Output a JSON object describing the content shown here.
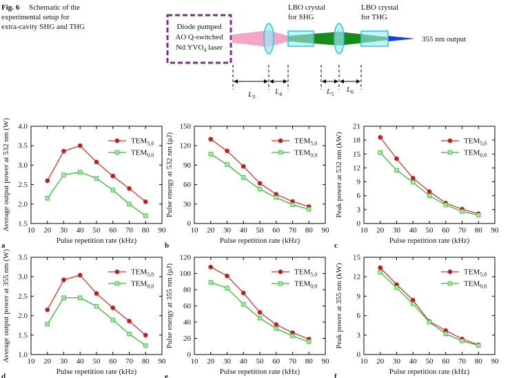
{
  "caption": {
    "label": "Fig. 6",
    "lines": [
      "Schematic of the",
      "experimental setup for",
      "extra-cavity SHG and THG"
    ]
  },
  "schematic": {
    "laser_label": [
      {
        "text": "Diode pumped"
      },
      {
        "text": "AO Q-switched"
      },
      {
        "text": "Nd:YVO",
        "sub": "4",
        "tail": " laser"
      }
    ],
    "crystal_shg": [
      "LBO crystal",
      "for SHG"
    ],
    "crystal_thg": [
      "LBO crystal",
      "for THG"
    ],
    "output": "355 nm output",
    "lengths": [
      {
        "text": "L",
        "sub": "3"
      },
      {
        "text": "L",
        "sub": "4"
      },
      {
        "text": "L",
        "sub": "5"
      },
      {
        "text": "L",
        "sub": "6"
      }
    ]
  },
  "chart_data": [
    {
      "type": "line",
      "panel": "a",
      "ylabel": "Average output power at 532 nm (W)",
      "xlabel": "Pulse repetition rate (kHz)",
      "x": [
        20,
        30,
        40,
        50,
        60,
        70,
        80
      ],
      "xlim": [
        10,
        90
      ],
      "xticks": [
        10,
        20,
        30,
        40,
        50,
        60,
        70,
        80,
        90
      ],
      "ylim": [
        1.5,
        4.0
      ],
      "yticks": [
        1.5,
        {
          "value": 2,
          "label": "2.0"
        },
        2.5,
        {
          "value": 3,
          "label": "3.0"
        },
        3.5,
        {
          "value": 4,
          "label": "4.0"
        }
      ],
      "legend": "upper right",
      "series": [
        {
          "name": "TEM",
          "name_sub": "5,0",
          "color": "#cc3333",
          "marker": "circle",
          "marker_fill": "#b22222",
          "values": [
            2.6,
            3.36,
            3.5,
            3.08,
            2.72,
            2.4,
            2.06
          ]
        },
        {
          "name": "TEM",
          "name_sub": "0,0",
          "color": "#33bb33",
          "marker": "square",
          "marker_fill": "#a6e6a6",
          "values": [
            2.15,
            2.75,
            2.82,
            2.66,
            2.36,
            2.0,
            1.7
          ]
        }
      ]
    },
    {
      "type": "line",
      "panel": "b",
      "ylabel": "Pulse energy at 532 nm (μJ)",
      "xlabel": "Pulse repetition rate (kHz)",
      "x": [
        20,
        30,
        40,
        50,
        60,
        70,
        80
      ],
      "xlim": [
        10,
        90
      ],
      "xticks": [
        10,
        20,
        30,
        40,
        50,
        60,
        70,
        80,
        90
      ],
      "ylim": [
        0,
        150
      ],
      "yticks": [
        0,
        30,
        60,
        90,
        120,
        150
      ],
      "legend": "upper right",
      "series": [
        {
          "name": "TEM",
          "name_sub": "5,0",
          "color": "#cc3333",
          "marker": "circle",
          "marker_fill": "#b22222",
          "values": [
            130,
            112,
            88,
            62,
            45,
            34,
            26
          ]
        },
        {
          "name": "TEM",
          "name_sub": "0,0",
          "color": "#33bb33",
          "marker": "square",
          "marker_fill": "#a6e6a6",
          "values": [
            107,
            91,
            71,
            53,
            40,
            29,
            22
          ]
        }
      ]
    },
    {
      "type": "line",
      "panel": "c",
      "ylabel": "Peak power at 532 nm (kW)",
      "xlabel": "Pulse repetition rate (kHz)",
      "x": [
        20,
        30,
        40,
        50,
        60,
        70,
        80
      ],
      "xlim": [
        10,
        90
      ],
      "xticks": [
        10,
        20,
        30,
        40,
        50,
        60,
        70,
        80,
        90
      ],
      "ylim": [
        0,
        21
      ],
      "yticks": [
        0,
        3,
        6,
        9,
        12,
        15,
        18,
        21
      ],
      "legend": "upper right",
      "series": [
        {
          "name": "TEM",
          "name_sub": "5,0",
          "color": "#cc3333",
          "marker": "circle",
          "marker_fill": "#b22222",
          "values": [
            18.6,
            14,
            9.8,
            6.9,
            4.4,
            3.1,
            2.1
          ]
        },
        {
          "name": "TEM",
          "name_sub": "0,0",
          "color": "#33bb33",
          "marker": "square",
          "marker_fill": "#a6e6a6",
          "values": [
            15.3,
            11.5,
            8.9,
            6,
            4,
            2.6,
            1.8
          ]
        }
      ]
    },
    {
      "type": "line",
      "panel": "d",
      "ylabel": "Average output power at 355 nm (W)",
      "xlabel": "Pulse repetition rate (kHz)",
      "x": [
        20,
        30,
        40,
        50,
        60,
        70,
        80
      ],
      "xlim": [
        10,
        90
      ],
      "xticks": [
        10,
        20,
        30,
        40,
        50,
        60,
        70,
        80,
        90
      ],
      "ylim": [
        1.0,
        3.5
      ],
      "yticks": [
        {
          "value": 1,
          "label": "1.0"
        },
        1.5,
        {
          "value": 2,
          "label": "2.0"
        },
        2.5,
        {
          "value": 3,
          "label": "3.0"
        },
        3.5
      ],
      "legend": "upper right",
      "series": [
        {
          "name": "TEM",
          "name_sub": "5,0",
          "color": "#cc3333",
          "marker": "circle",
          "marker_fill": "#b22222",
          "values": [
            2.15,
            2.92,
            3.04,
            2.57,
            2.2,
            1.86,
            1.5
          ]
        },
        {
          "name": "TEM",
          "name_sub": "0,0",
          "color": "#33bb33",
          "marker": "square",
          "marker_fill": "#a6e6a6",
          "values": [
            1.78,
            2.46,
            2.46,
            2.24,
            1.89,
            1.53,
            1.23
          ]
        }
      ]
    },
    {
      "type": "line",
      "panel": "e",
      "ylabel": "Pulse energy at 355 nm (μJ)",
      "xlabel": "Pulse repetition rate (kHz)",
      "x": [
        20,
        30,
        40,
        50,
        60,
        70,
        80
      ],
      "xlim": [
        10,
        90
      ],
      "xticks": [
        10,
        20,
        30,
        40,
        50,
        60,
        70,
        80,
        90
      ],
      "ylim": [
        0,
        120
      ],
      "yticks": [
        0,
        20,
        40,
        60,
        80,
        100,
        120
      ],
      "legend": "upper right",
      "series": [
        {
          "name": "TEM",
          "name_sub": "5,0",
          "color": "#cc3333",
          "marker": "circle",
          "marker_fill": "#b22222",
          "values": [
            108,
            97,
            76,
            52,
            37,
            27,
            19
          ]
        },
        {
          "name": "TEM",
          "name_sub": "0,0",
          "color": "#33bb33",
          "marker": "square",
          "marker_fill": "#a6e6a6",
          "values": [
            89,
            82,
            62,
            45,
            32,
            23,
            16
          ]
        }
      ]
    },
    {
      "type": "line",
      "panel": "f",
      "ylabel": "Peak power at 355 nm (kW)",
      "xlabel": "Pulse repetition rate (kHz)",
      "x": [
        20,
        30,
        40,
        50,
        60,
        70,
        80
      ],
      "xlim": [
        10,
        90
      ],
      "xticks": [
        10,
        20,
        30,
        40,
        50,
        60,
        70,
        80,
        90
      ],
      "ylim": [
        0,
        15
      ],
      "yticks": [
        0,
        3,
        6,
        9,
        12,
        15
      ],
      "legend": "upper right",
      "series": [
        {
          "name": "TEM",
          "name_sub": "5,0",
          "color": "#cc3333",
          "marker": "circle",
          "marker_fill": "#b22222",
          "values": [
            13.4,
            10.8,
            8.4,
            5.1,
            3.7,
            2.4,
            1.5
          ]
        },
        {
          "name": "TEM",
          "name_sub": "0,0",
          "color": "#33bb33",
          "marker": "square",
          "marker_fill": "#a6e6a6",
          "values": [
            12.7,
            10.3,
            7.8,
            5.0,
            3.2,
            2.1,
            1.4
          ]
        }
      ]
    }
  ]
}
